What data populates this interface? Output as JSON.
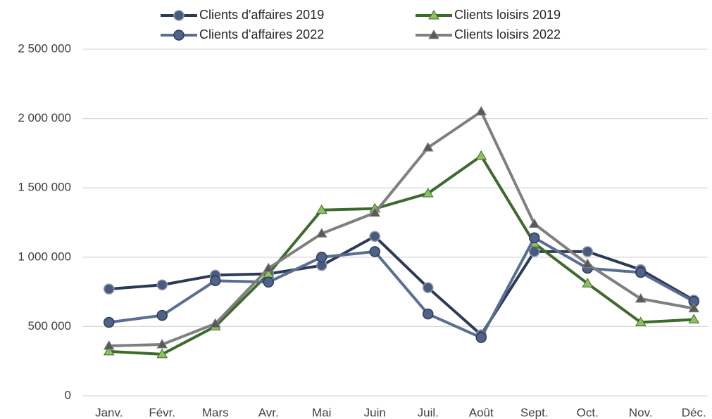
{
  "chart_data": {
    "type": "line",
    "categories": [
      "Janv.",
      "Févr.",
      "Mars",
      "Avr.",
      "Mai",
      "Juin",
      "Juil.",
      "Août",
      "Sept.",
      "Oct.",
      "Nov.",
      "Déc."
    ],
    "series": [
      {
        "name": "Clients d'affaires 2019",
        "color": "#2d3a54",
        "marker": "circle",
        "values": [
          770000,
          800000,
          870000,
          880000,
          940000,
          1150000,
          780000,
          440000,
          1040000,
          1040000,
          910000,
          690000
        ]
      },
      {
        "name": "Clients loisirs 2019",
        "color": "#3d6b2c",
        "marker": "triangle",
        "values": [
          320000,
          300000,
          500000,
          880000,
          1340000,
          1350000,
          1460000,
          1730000,
          1100000,
          810000,
          530000,
          550000
        ]
      },
      {
        "name": "Clients d'affaires 2022",
        "color": "#5a6e93",
        "marker": "circle",
        "values": [
          530000,
          580000,
          830000,
          820000,
          1000000,
          1040000,
          590000,
          420000,
          1140000,
          920000,
          890000,
          680000
        ]
      },
      {
        "name": "Clients loisirs 2022",
        "color": "#7f7f7f",
        "marker": "triangle",
        "values": [
          360000,
          370000,
          520000,
          920000,
          1170000,
          1320000,
          1790000,
          2050000,
          1240000,
          950000,
          700000,
          630000
        ]
      }
    ],
    "ylim": [
      0,
      2500000
    ],
    "yticks": [
      0,
      {
        "value": 500000,
        "label": "500 000"
      },
      {
        "value": 1000000,
        "label": "1 000 000"
      },
      {
        "value": 1500000,
        "label": "1 500 000"
      },
      {
        "value": 2000000,
        "label": "2 000 000"
      },
      {
        "value": 2500000,
        "label": "2 500 000"
      }
    ],
    "grid": true,
    "legend": "top"
  }
}
